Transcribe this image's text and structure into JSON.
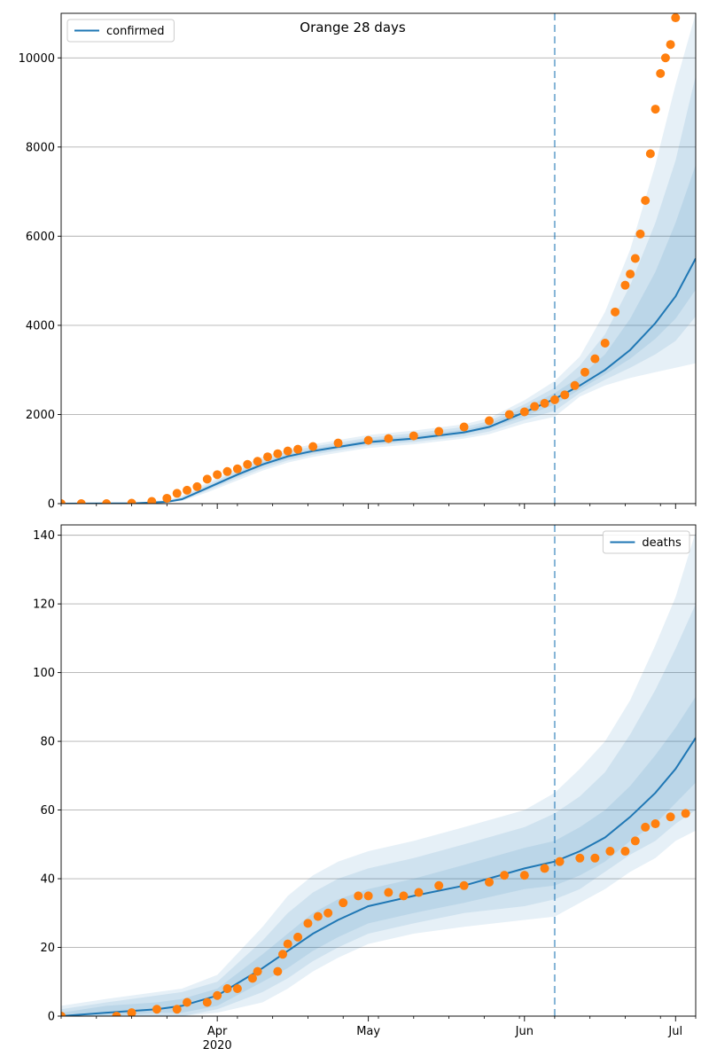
{
  "figure": {
    "title": "Orange 28 days"
  },
  "colors": {
    "model": "#1f77b4",
    "observed": "#ff7f0e",
    "grid": "#b0b0b0",
    "vline": "#1f77b4"
  },
  "x_axis": {
    "start": "2020-03-01",
    "end": "2020-07-05",
    "tick_labels": [
      {
        "date": "2020-04-01",
        "label": "Apr",
        "sub": "2020"
      },
      {
        "date": "2020-05-01",
        "label": "May",
        "sub": ""
      },
      {
        "date": "2020-06-01",
        "label": "Jun",
        "sub": ""
      },
      {
        "date": "2020-07-01",
        "label": "Jul",
        "sub": ""
      }
    ],
    "forecast_start": "2020-06-07"
  },
  "chart_data": [
    {
      "type": "line",
      "legend": "confirmed",
      "legend_position": "upper-left",
      "grid": "horizontal",
      "ylim": [
        0,
        11000
      ],
      "yticks": [
        0,
        2000,
        4000,
        6000,
        8000,
        10000
      ],
      "model_dates": [
        "2020-03-01",
        "2020-03-15",
        "2020-03-22",
        "2020-03-25",
        "2020-03-30",
        "2020-04-05",
        "2020-04-10",
        "2020-04-15",
        "2020-04-20",
        "2020-05-01",
        "2020-05-10",
        "2020-05-20",
        "2020-05-25",
        "2020-06-01",
        "2020-06-07",
        "2020-06-12",
        "2020-06-17",
        "2020-06-22",
        "2020-06-27",
        "2020-07-01",
        "2020-07-05"
      ],
      "model": [
        0,
        5,
        40,
        100,
        350,
        650,
        880,
        1060,
        1180,
        1380,
        1460,
        1600,
        1720,
        2050,
        2350,
        2650,
        3000,
        3450,
        4050,
        4650,
        5500
      ],
      "band_lower_90": [
        0,
        0,
        20,
        60,
        250,
        520,
        740,
        920,
        1050,
        1250,
        1330,
        1460,
        1560,
        1800,
        1950,
        2400,
        2650,
        2820,
        2950,
        3050,
        3150
      ],
      "band_upper_90": [
        0,
        15,
        80,
        180,
        470,
        800,
        1050,
        1220,
        1330,
        1540,
        1640,
        1780,
        1920,
        2320,
        2750,
        3300,
        4300,
        5700,
        7600,
        9400,
        11000
      ],
      "band_lower_75": [
        0,
        2,
        27,
        75,
        290,
        570,
        790,
        970,
        1100,
        1300,
        1380,
        1510,
        1620,
        1880,
        2080,
        2480,
        2780,
        3050,
        3350,
        3650,
        4200
      ],
      "band_upper_75": [
        0,
        10,
        65,
        150,
        420,
        740,
        990,
        1170,
        1280,
        1480,
        1580,
        1720,
        1850,
        2230,
        2600,
        3100,
        3800,
        4900,
        6300,
        7700,
        9600
      ],
      "band_lower_50": [
        0,
        3,
        33,
        88,
        320,
        610,
        840,
        1010,
        1140,
        1340,
        1420,
        1560,
        1680,
        1960,
        2220,
        2560,
        2900,
        3250,
        3700,
        4150,
        4800
      ],
      "band_upper_50": [
        0,
        8,
        52,
        120,
        380,
        690,
        930,
        1110,
        1230,
        1430,
        1520,
        1660,
        1790,
        2150,
        2480,
        2850,
        3350,
        4150,
        5200,
        6300,
        7600
      ],
      "observed_dates": [
        "2020-03-01",
        "2020-03-05",
        "2020-03-10",
        "2020-03-15",
        "2020-03-19",
        "2020-03-22",
        "2020-03-24",
        "2020-03-26",
        "2020-03-28",
        "2020-03-30",
        "2020-04-01",
        "2020-04-03",
        "2020-04-05",
        "2020-04-07",
        "2020-04-09",
        "2020-04-11",
        "2020-04-13",
        "2020-04-15",
        "2020-04-17",
        "2020-04-20",
        "2020-04-25",
        "2020-05-01",
        "2020-05-05",
        "2020-05-10",
        "2020-05-15",
        "2020-05-20",
        "2020-05-25",
        "2020-05-29",
        "2020-06-01",
        "2020-06-03",
        "2020-06-05",
        "2020-06-07",
        "2020-06-09",
        "2020-06-11",
        "2020-06-13",
        "2020-06-15",
        "2020-06-17",
        "2020-06-19",
        "2020-06-21",
        "2020-06-22",
        "2020-06-23",
        "2020-06-24",
        "2020-06-25",
        "2020-06-26",
        "2020-06-27",
        "2020-06-28",
        "2020-06-29",
        "2020-06-30",
        "2020-07-01"
      ],
      "observed": [
        0,
        0,
        0,
        10,
        50,
        120,
        230,
        300,
        380,
        550,
        650,
        720,
        780,
        880,
        950,
        1050,
        1120,
        1180,
        1220,
        1280,
        1360,
        1420,
        1460,
        1520,
        1620,
        1720,
        1860,
        2000,
        2060,
        2180,
        2250,
        2330,
        2440,
        2650,
        2950,
        3250,
        3600,
        4300,
        4900,
        5150,
        5500,
        6050,
        6800,
        7850,
        8850,
        9650,
        10000,
        10300,
        10900
      ]
    },
    {
      "type": "line",
      "legend": "deaths",
      "legend_position": "upper-right",
      "grid": "horizontal",
      "ylim": [
        0,
        143
      ],
      "yticks": [
        0,
        20,
        40,
        60,
        80,
        100,
        120,
        140
      ],
      "model_dates": [
        "2020-03-01",
        "2020-03-10",
        "2020-03-20",
        "2020-03-25",
        "2020-04-01",
        "2020-04-10",
        "2020-04-15",
        "2020-04-20",
        "2020-04-25",
        "2020-05-01",
        "2020-05-10",
        "2020-05-20",
        "2020-06-01",
        "2020-06-07",
        "2020-06-12",
        "2020-06-17",
        "2020-06-22",
        "2020-06-27",
        "2020-07-01",
        "2020-07-05"
      ],
      "model": [
        0,
        1,
        2,
        3,
        6,
        14,
        19,
        24,
        28,
        32,
        35,
        38,
        43,
        45,
        48,
        52,
        58,
        65,
        72,
        81
      ],
      "band_lower_90": [
        0,
        0,
        0,
        0,
        1,
        4,
        8,
        13,
        17,
        21,
        24,
        26,
        28,
        29,
        33,
        37,
        42,
        46,
        51,
        54
      ],
      "band_upper_90": [
        3,
        5,
        7,
        8,
        12,
        26,
        35,
        41,
        45,
        48,
        51,
        55,
        60,
        65,
        72,
        80,
        92,
        108,
        122,
        141
      ],
      "band_lower_75": [
        0,
        0,
        0,
        0,
        2,
        7,
        11,
        16,
        20,
        24,
        27,
        30,
        32,
        34,
        37,
        42,
        47,
        51,
        56,
        60
      ],
      "band_upper_75": [
        2,
        4,
        6,
        7,
        10,
        22,
        30,
        36,
        40,
        43,
        46,
        50,
        55,
        59,
        64,
        71,
        82,
        95,
        107,
        120
      ],
      "band_lower_50": [
        0,
        0,
        1,
        1,
        3,
        10,
        14,
        19,
        23,
        27,
        30,
        33,
        37,
        38,
        41,
        45,
        51,
        56,
        62,
        68
      ],
      "band_upper_50": [
        1,
        3,
        4,
        5,
        8,
        18,
        24,
        30,
        34,
        37,
        40,
        44,
        49,
        51,
        55,
        60,
        67,
        76,
        84,
        93
      ],
      "observed_dates": [
        "2020-03-01",
        "2020-03-12",
        "2020-03-15",
        "2020-03-20",
        "2020-03-24",
        "2020-03-26",
        "2020-03-30",
        "2020-04-01",
        "2020-04-03",
        "2020-04-05",
        "2020-04-08",
        "2020-04-09",
        "2020-04-13",
        "2020-04-14",
        "2020-04-15",
        "2020-04-17",
        "2020-04-19",
        "2020-04-21",
        "2020-04-23",
        "2020-04-26",
        "2020-04-29",
        "2020-05-01",
        "2020-05-05",
        "2020-05-08",
        "2020-05-11",
        "2020-05-15",
        "2020-05-20",
        "2020-05-25",
        "2020-05-28",
        "2020-06-01",
        "2020-06-05",
        "2020-06-08",
        "2020-06-12",
        "2020-06-15",
        "2020-06-18",
        "2020-06-21",
        "2020-06-23",
        "2020-06-25",
        "2020-06-27",
        "2020-06-30",
        "2020-07-03"
      ],
      "observed": [
        0,
        0,
        1,
        2,
        2,
        4,
        4,
        6,
        8,
        8,
        11,
        13,
        13,
        18,
        21,
        23,
        27,
        29,
        30,
        33,
        35,
        35,
        36,
        35,
        36,
        38,
        38,
        39,
        41,
        41,
        43,
        45,
        46,
        46,
        48,
        48,
        51,
        55,
        56,
        58,
        59
      ]
    }
  ]
}
